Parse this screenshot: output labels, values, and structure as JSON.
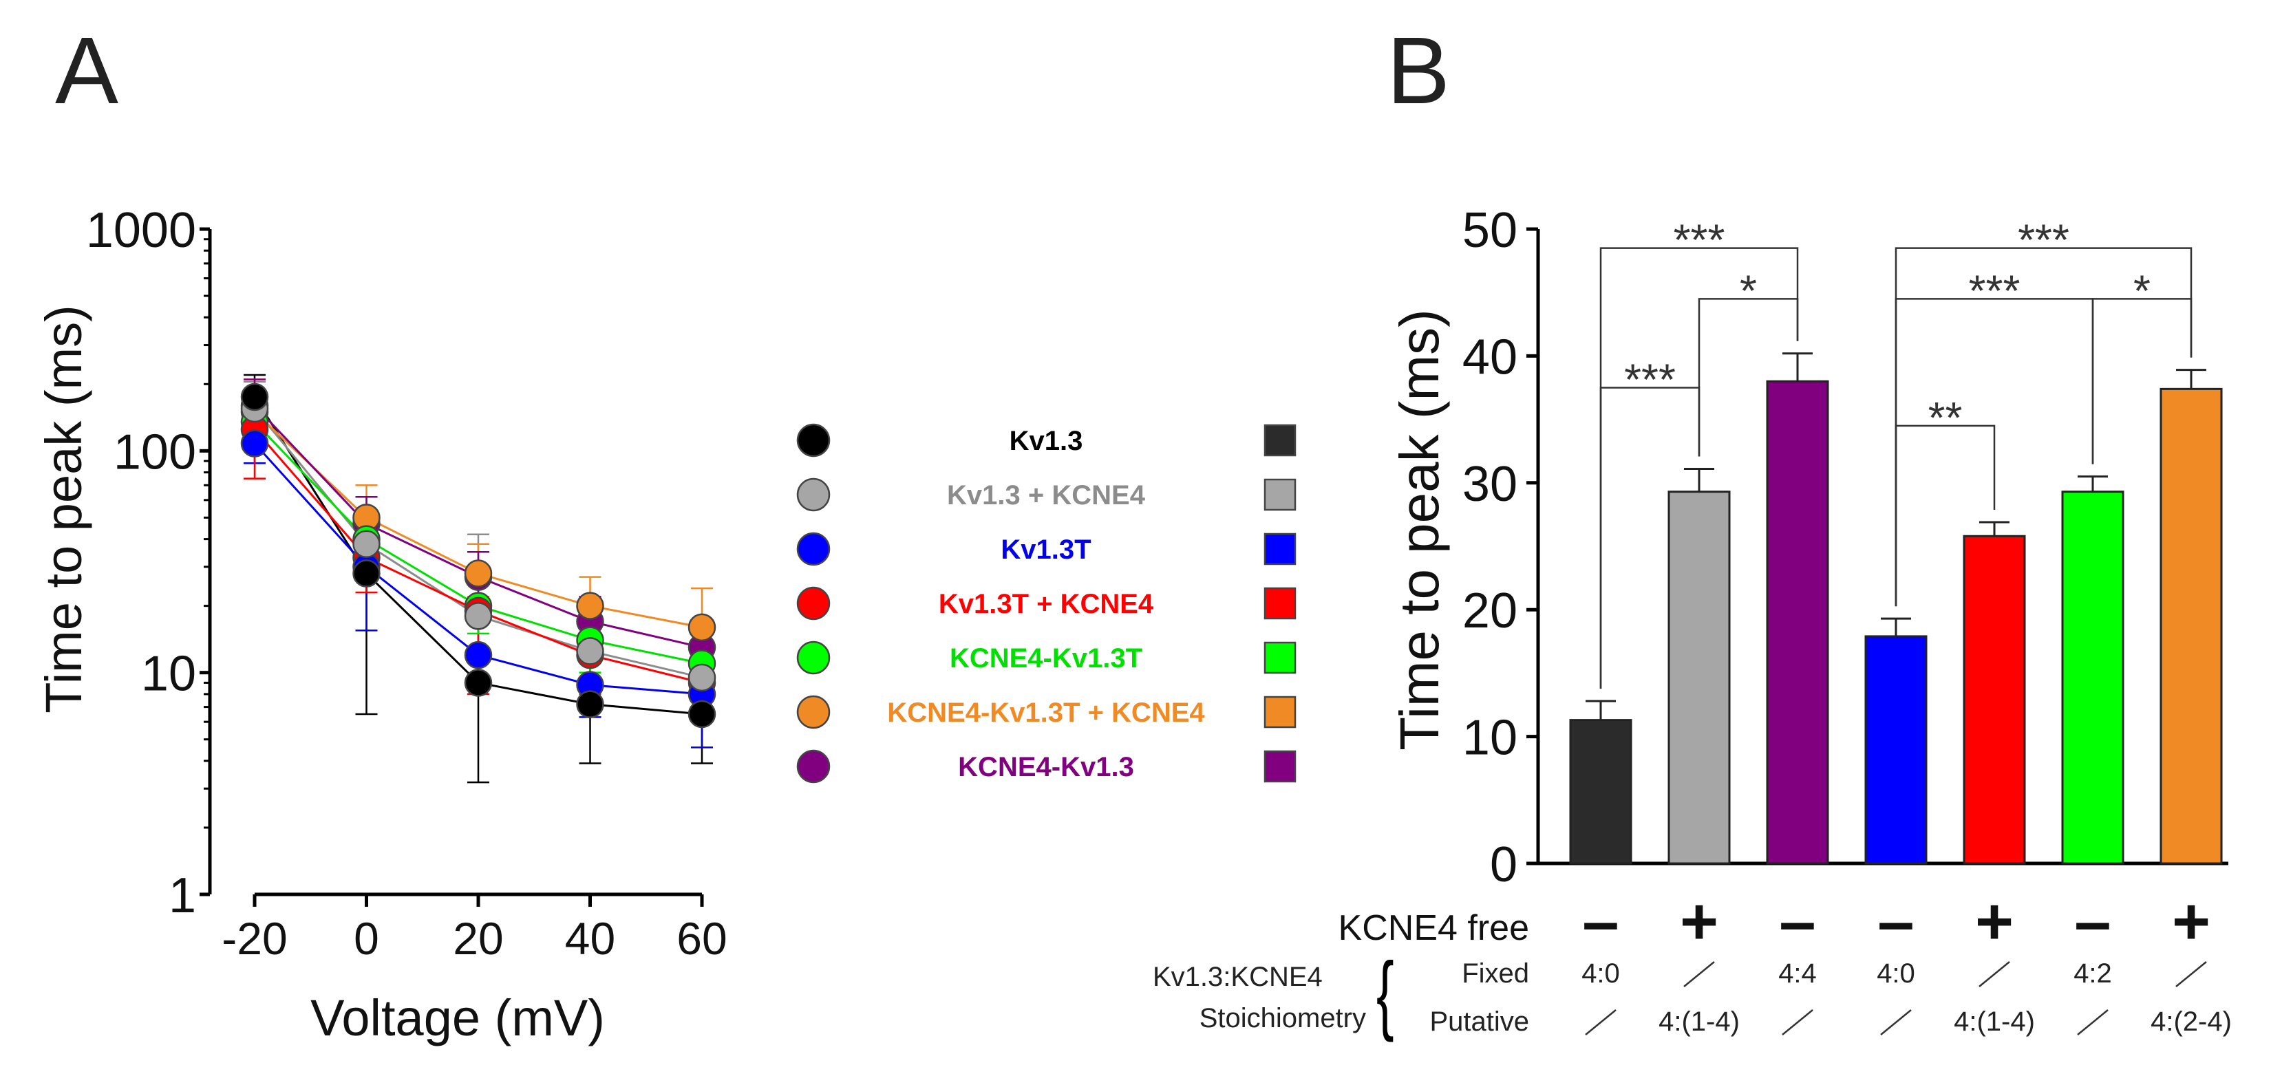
{
  "panels": {
    "a": {
      "letter": "A"
    },
    "b": {
      "letter": "B"
    }
  },
  "legend": {
    "items": [
      {
        "label": "Kv1.3",
        "color": "#000000",
        "fill": "#000000",
        "bar_color": "#2b2b2b"
      },
      {
        "label": "Kv1.3 + KCNE4",
        "color": "#8c8c8c",
        "fill": "#a6a6a6",
        "bar_color": "#a6a6a6"
      },
      {
        "label": "Kv1.3T",
        "color": "#0000ee",
        "fill": "#0000ff",
        "bar_color": "#0000ff"
      },
      {
        "label": "Kv1.3T + KCNE4",
        "color": "#ff0000",
        "fill": "#ff0000",
        "bar_color": "#ff0000"
      },
      {
        "label": "KCNE4-Kv1.3T",
        "color": "#00e000",
        "fill": "#00ff00",
        "bar_color": "#00ff00"
      },
      {
        "label": "KCNE4-Kv1.3T + KCNE4",
        "color": "#f08a24",
        "fill": "#f08a24",
        "bar_color": "#f08a24"
      },
      {
        "label": "KCNE4-Kv1.3",
        "color": "#800080",
        "fill": "#800080",
        "bar_color": "#800080"
      }
    ]
  },
  "row_labels": {
    "kcne4_free": "KCNE4 free",
    "ratio": "Kv1.3:KCNE4",
    "stoich": "Stoichiometry",
    "fixed": "Fixed",
    "putative": "Putative"
  },
  "chart_data": [
    {
      "panel": "A",
      "type": "line",
      "xlabel": "Voltage (mV)",
      "ylabel": "Time to peak (ms)",
      "yscale": "log",
      "xlim": [
        -20,
        60
      ],
      "ylim": [
        1,
        1000
      ],
      "x": [
        -20,
        0,
        20,
        40,
        60
      ],
      "x_ticks": [
        -20,
        0,
        20,
        40,
        60
      ],
      "x_tick_labels": [
        "-20",
        "0",
        "20",
        "40",
        "60"
      ],
      "y_ticks": [
        1,
        10,
        100,
        1000
      ],
      "y_tick_labels": [
        "1",
        "10",
        "100",
        "1000"
      ],
      "series": [
        {
          "name": "Kv1.3",
          "color": "#000000",
          "fill": "#000000",
          "values": [
            175,
            28,
            9,
            7.2,
            6.5
          ],
          "err_lo": [
            60,
            21.5,
            5.8,
            3.3,
            2.6
          ],
          "err_hi": [
            45,
            8,
            3,
            2,
            2
          ]
        },
        {
          "name": "Kv1.3 + KCNE4",
          "color": "#8c8c8c",
          "fill": "#a6a6a6",
          "values": [
            155,
            38,
            18,
            12.5,
            9.5
          ],
          "err_lo": [
            45,
            12,
            6,
            4,
            3
          ],
          "err_hi": [
            50,
            14,
            24,
            6,
            4
          ]
        },
        {
          "name": "Kv1.3T",
          "color": "#0000ee",
          "fill": "#0000ff",
          "values": [
            108,
            30,
            12,
            8.8,
            8
          ],
          "err_lo": [
            20,
            14.5,
            4,
            2.5,
            3.4
          ],
          "err_hi": [
            25,
            10,
            5,
            3,
            2.5
          ]
        },
        {
          "name": "Kv1.3T + KCNE4",
          "color": "#ff0000",
          "fill": "#ff0000",
          "values": [
            125,
            33,
            19,
            12,
            9
          ],
          "err_lo": [
            50,
            10,
            11,
            4,
            3
          ],
          "err_hi": [
            40,
            10,
            6,
            4,
            3
          ]
        },
        {
          "name": "KCNE4-Kv1.3T",
          "color": "#00e000",
          "fill": "#00ff00",
          "values": [
            135,
            40,
            20,
            14,
            11
          ],
          "err_lo": [
            30,
            10,
            5,
            4,
            3
          ],
          "err_hi": [
            40,
            10,
            6,
            4,
            3
          ]
        },
        {
          "name": "KCNE4-Kv1.3T + KCNE4",
          "color": "#f08a24",
          "fill": "#f08a24",
          "values": [
            150,
            50,
            28,
            20,
            16
          ],
          "err_lo": [
            40,
            15,
            6,
            5,
            4
          ],
          "err_hi": [
            60,
            20,
            10,
            7,
            8
          ]
        },
        {
          "name": "KCNE4-Kv1.3",
          "color": "#800080",
          "fill": "#800080",
          "values": [
            160,
            47,
            27,
            17,
            13
          ],
          "err_lo": [
            40,
            12,
            6,
            4,
            3
          ],
          "err_hi": [
            50,
            15,
            8,
            5,
            4
          ]
        }
      ]
    },
    {
      "panel": "B",
      "type": "bar",
      "ylabel": "Time to peak (ms)",
      "ylim": [
        0,
        50
      ],
      "y_ticks": [
        0,
        10,
        20,
        30,
        40,
        50
      ],
      "y_tick_labels": [
        "0",
        "10",
        "20",
        "30",
        "40",
        "50"
      ],
      "categories": [
        "Kv1.3",
        "Kv1.3 + KCNE4",
        "KCNE4-Kv1.3",
        "Kv1.3T",
        "Kv1.3T + KCNE4",
        "KCNE4-Kv1.3T",
        "KCNE4-Kv1.3T + KCNE4"
      ],
      "values": [
        11.3,
        29.3,
        38,
        17.9,
        25.8,
        29.3,
        37.4
      ],
      "errors": [
        1.5,
        1.8,
        2.2,
        1.4,
        1.1,
        1.2,
        1.5
      ],
      "colors": [
        "#2b2b2b",
        "#a6a6a6",
        "#800080",
        "#0000ff",
        "#ff0000",
        "#00ff00",
        "#f08a24"
      ],
      "kcne4_free": [
        "–",
        "+",
        "–",
        "–",
        "+",
        "–",
        "+"
      ],
      "fixed": [
        "4:0",
        "/",
        "4:4",
        "4:0",
        "/",
        "4:2",
        "/"
      ],
      "putative": [
        "/",
        "4:(1-4)",
        "/",
        "/",
        "4:(1-4)",
        "/",
        "4:(2-4)"
      ],
      "significance": [
        {
          "from": 0,
          "to": 2,
          "y": 48.5,
          "label": "***"
        },
        {
          "from": 1,
          "to": 2,
          "y": 44.5,
          "label": "*"
        },
        {
          "from": 0,
          "to": 1,
          "y": 37.5,
          "label": "***"
        },
        {
          "from": 3,
          "to": 6,
          "y": 48.5,
          "label": "***"
        },
        {
          "from": 3,
          "to": 5,
          "y": 44.5,
          "label": "***"
        },
        {
          "from": 5,
          "to": 6,
          "y": 44.5,
          "label": "*"
        },
        {
          "from": 3,
          "to": 4,
          "y": 34.5,
          "label": "**"
        }
      ]
    }
  ]
}
